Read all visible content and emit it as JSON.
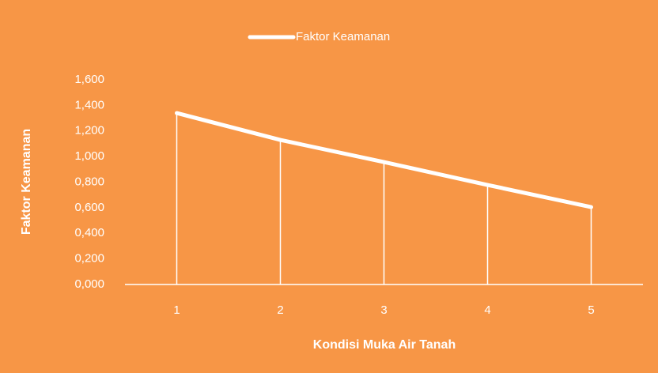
{
  "chart_data": {
    "type": "line",
    "xlabel": "Kondisi Muka Air Tanah",
    "ylabel": "Faktor Keamanan",
    "categories": [
      "1",
      "2",
      "3",
      "4",
      "5"
    ],
    "series": [
      {
        "name": "Faktor Keamanan",
        "color": "#ffffff",
        "values": [
          1.34,
          1.13,
          0.957,
          0.778,
          0.605
        ]
      }
    ],
    "ylim": [
      0,
      1.6
    ],
    "yticks": [
      {
        "value": 0,
        "label": "0,000"
      },
      {
        "value": 0.2,
        "label": "0,200"
      },
      {
        "value": 0.4,
        "label": "0,400"
      },
      {
        "value": 0.6,
        "label": "0,600"
      },
      {
        "value": 0.8,
        "label": "0,800"
      },
      {
        "value": 1.0,
        "label": "1,000"
      },
      {
        "value": 1.2,
        "label": "1,200"
      },
      {
        "value": 1.4,
        "label": "1,400"
      },
      {
        "value": 1.6,
        "label": "1,600"
      }
    ],
    "legend": "top",
    "drop_lines": true
  }
}
